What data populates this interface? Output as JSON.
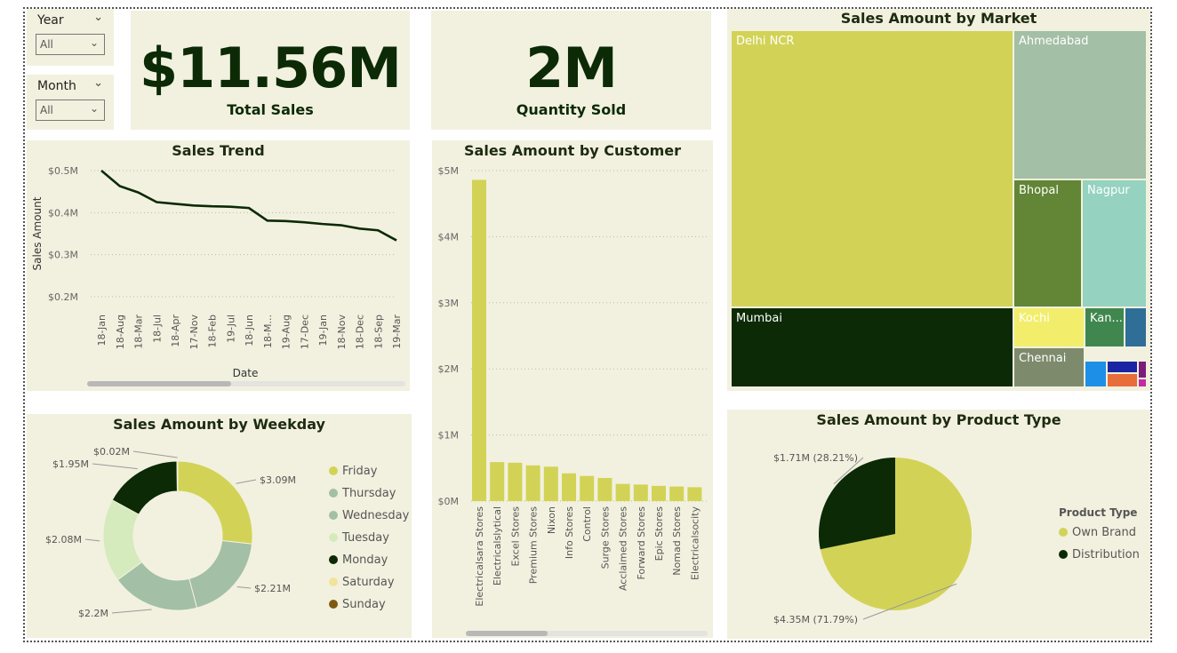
{
  "slicers": [
    {
      "label": "Year",
      "value": "All"
    },
    {
      "label": "Month",
      "value": "All"
    }
  ],
  "kpis": {
    "total_sales": {
      "value": "$11.56M",
      "label": "Total Sales"
    },
    "quantity_sold": {
      "value": "2M",
      "label": "Quantity Sold"
    }
  },
  "colors": {
    "panel": "#f2f1df",
    "dark_green": "#0b2a05",
    "olive": "#d2d356",
    "sage": "#a3bfa6"
  },
  "chart_data": [
    {
      "id": "sales_trend",
      "type": "line",
      "title": "Sales Trend",
      "xlabel": "Date",
      "ylabel": "Sales Amount",
      "x": [
        "18-Jan",
        "18-Aug",
        "18-Mar",
        "18-Jul",
        "18-Apr",
        "17-Nov",
        "18-Feb",
        "19-Jul",
        "18-Jun",
        "18-M...",
        "19-Aug",
        "17-Dec",
        "19-Jan",
        "18-Nov",
        "18-Dec",
        "18-Sep",
        "19-Mar"
      ],
      "values": [
        0.5,
        0.463,
        0.448,
        0.425,
        0.421,
        0.417,
        0.415,
        0.414,
        0.411,
        0.381,
        0.38,
        0.377,
        0.373,
        0.37,
        0.362,
        0.358,
        0.334
      ],
      "yticks": [
        "$0.2M",
        "$0.3M",
        "$0.4M",
        "$0.5M"
      ],
      "ylim": [
        0.2,
        0.5
      ],
      "color": "#0b2a05",
      "grid": true
    },
    {
      "id": "sales_by_customer",
      "type": "bar",
      "title": "Sales Amount by Customer",
      "categories": [
        "Electricalsara Stores",
        "Electricalslytical",
        "Excel Stores",
        "Premium Stores",
        "Nixon",
        "Info Stores",
        "Control",
        "Surge Stores",
        "Acclaimed Stores",
        "Forward Stores",
        "Epic Stores",
        "Nomad Stores",
        "Electricalsocity"
      ],
      "values": [
        4.86,
        0.59,
        0.58,
        0.54,
        0.52,
        0.42,
        0.38,
        0.35,
        0.26,
        0.25,
        0.23,
        0.22,
        0.21
      ],
      "yticks": [
        "$0M",
        "$1M",
        "$2M",
        "$3M",
        "$4M",
        "$5M"
      ],
      "ylim": [
        0,
        5
      ],
      "color": "#d2d356",
      "grid": true
    },
    {
      "id": "sales_by_market",
      "type": "treemap",
      "title": "Sales Amount by Market",
      "items": [
        {
          "name": "Delhi NCR",
          "color": "#d2d356"
        },
        {
          "name": "Ahmedabad",
          "color": "#a3bfa6"
        },
        {
          "name": "Bhopal",
          "color": "#628536"
        },
        {
          "name": "Nagpur",
          "color": "#95d2c0"
        },
        {
          "name": "Mumbai",
          "color": "#0b2a05"
        },
        {
          "name": "Kochi",
          "color": "#f2ee6c"
        },
        {
          "name": "Kan...",
          "color": "#3f874f"
        },
        {
          "name": "",
          "color": "#2f6e97"
        },
        {
          "name": "Chennai",
          "color": "#7e8a6c"
        },
        {
          "name": "",
          "color": "#1d8fe6"
        },
        {
          "name": "",
          "color": "#1b24a3"
        },
        {
          "name": "",
          "color": "#7b1c7a"
        },
        {
          "name": "",
          "color": "#e76d3b"
        },
        {
          "name": "",
          "color": "#c42ba3"
        }
      ]
    },
    {
      "id": "sales_by_weekday",
      "type": "pie",
      "title": "Sales Amount by Weekday",
      "donut": true,
      "legend": "right",
      "series": [
        {
          "name": "Friday",
          "value": 3.09,
          "label": "$3.09M",
          "color": "#d2d356"
        },
        {
          "name": "Thursday",
          "value": 2.21,
          "label": "$2.21M",
          "color": "#a3bfa6"
        },
        {
          "name": "Wednesday",
          "value": 2.2,
          "label": "$2.2M",
          "color": "#a3bfa6"
        },
        {
          "name": "Tuesday",
          "value": 2.08,
          "label": "$2.08M",
          "color": "#d6ebbd"
        },
        {
          "name": "Monday",
          "value": 1.95,
          "label": "$1.95M",
          "color": "#0b2a05"
        },
        {
          "name": "Saturday",
          "value": 0.02,
          "label": "$0.02M",
          "color": "#f2e39c"
        },
        {
          "name": "Sunday",
          "value": 0.0,
          "label": "",
          "color": "#7c5a10"
        }
      ]
    },
    {
      "id": "sales_by_product_type",
      "type": "pie",
      "title": "Sales Amount by Product Type",
      "legend_title": "Product Type",
      "legend": "right",
      "series": [
        {
          "name": "Own Brand",
          "value": 4.35,
          "label": "$4.35M (71.79%)",
          "color": "#d2d356"
        },
        {
          "name": "Distribution",
          "value": 1.71,
          "label": "$1.71M (28.21%)",
          "color": "#0b2a05"
        }
      ]
    }
  ]
}
